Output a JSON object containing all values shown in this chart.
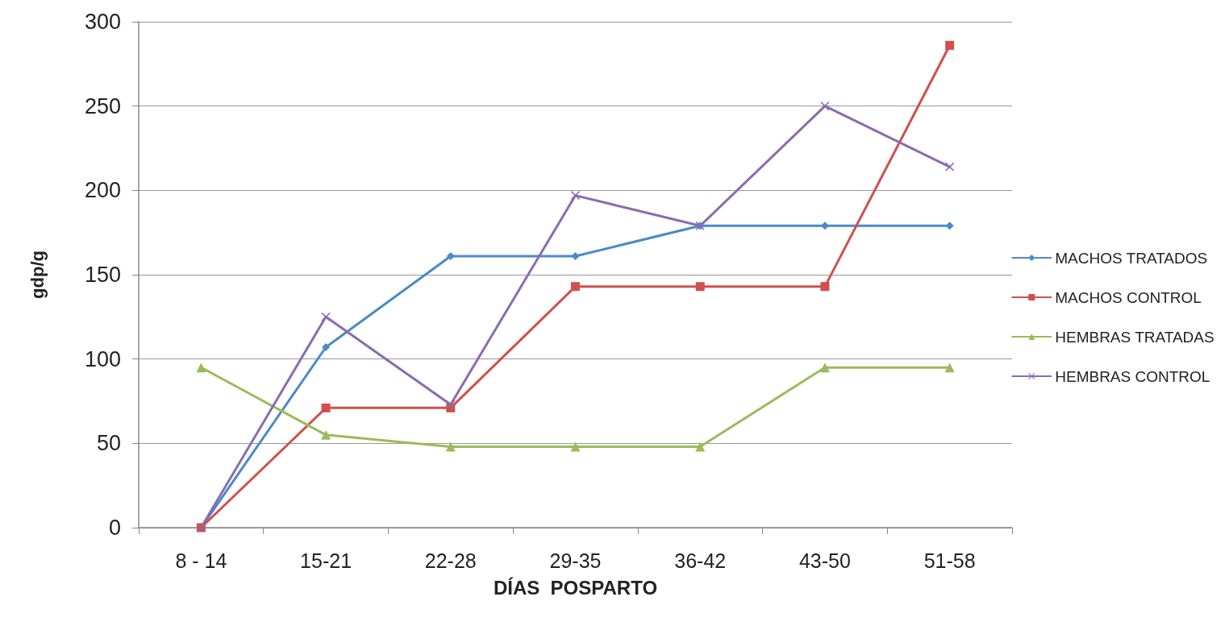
{
  "chart_data": {
    "type": "line",
    "xlabel": "DÍAS  POSPARTO",
    "ylabel": "gdp/g",
    "categories": [
      "8 - 14",
      "15-21",
      "22-28",
      "29-35",
      "36-42",
      "43-50",
      "51-58"
    ],
    "series": [
      {
        "name": "MACHOS TRATADOS",
        "color": "#4a8ac8",
        "marker": "diamond",
        "values": [
          0,
          107,
          161,
          161,
          179,
          179,
          179
        ]
      },
      {
        "name": "MACHOS CONTROL",
        "color": "#d0504d",
        "marker": "square",
        "values": [
          0,
          71,
          71,
          143,
          143,
          143,
          286
        ]
      },
      {
        "name": "HEMBRAS TRATADAS",
        "color": "#9bbb59",
        "marker": "triangle",
        "values": [
          95,
          55,
          48,
          48,
          48,
          95,
          95
        ]
      },
      {
        "name": "HEMBRAS CONTROL",
        "color": "#8a6cb0",
        "marker": "cross",
        "values": [
          0,
          125,
          73,
          197,
          179,
          250,
          214
        ]
      }
    ],
    "ylim": [
      0,
      300
    ],
    "yticks": [
      0,
      50,
      100,
      150,
      200,
      250,
      300
    ],
    "grid": "y",
    "legend": "right",
    "line_style": "solid"
  }
}
